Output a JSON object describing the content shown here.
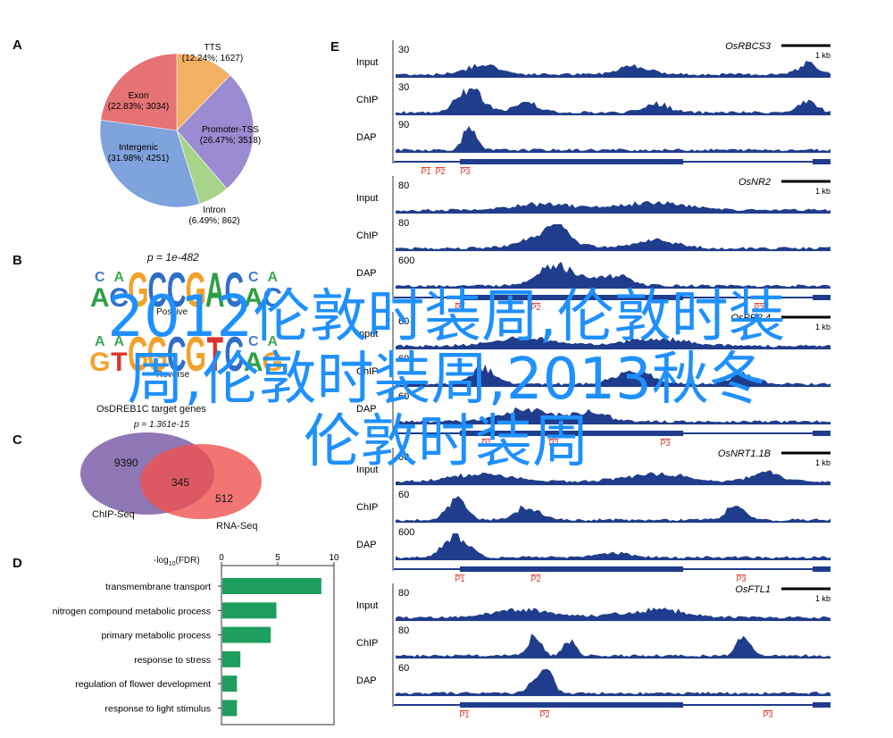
{
  "panels": {
    "A": {
      "letter": "A",
      "pie": [
        {
          "label": "TTS",
          "detail": "(12.24%; 1627)",
          "value": 12.24,
          "color": "#f2b063"
        },
        {
          "label": "Promoter-TSS",
          "detail": "(26.47%; 3518)",
          "value": 26.47,
          "color": "#9b8bd1"
        },
        {
          "label": "Intron",
          "detail": "(6.49%; 862)",
          "value": 6.49,
          "color": "#a6d48a"
        },
        {
          "label": "Intergenic",
          "detail": "(31.98%; 4251)",
          "value": 31.98,
          "color": "#7fa3dc"
        },
        {
          "label": "Exon",
          "detail": "(22.83%; 3034)",
          "value": 22.83,
          "color": "#e57373"
        }
      ]
    },
    "B": {
      "letter": "B",
      "pvalue": "p = 1e-482",
      "caption_top": "Positive",
      "caption_bottom": "Reverse",
      "title": "OsDREB1C target genes",
      "logo_top": "ACGCCGACAC",
      "logo_bottom": "GTGGCGTCAG"
    },
    "C": {
      "letter": "C",
      "pvalue": "p = 1.361e-15",
      "left_only": "9390",
      "overlap": "345",
      "right_only": "512",
      "left_label": "ChIP-Seq",
      "right_label": "RNA-Seq",
      "left_color": "#7b5ea7",
      "right_color": "#ef5350"
    },
    "D": {
      "letter": "D",
      "axis_label": "-log10(FDR)",
      "ticks": [
        "0",
        "5",
        "10"
      ],
      "bar_color": "#1e9e5c"
    },
    "E": {
      "letter": "E",
      "scale_label": "1 kb",
      "track_color": "#1f3d8c",
      "genes": [
        {
          "name": "OsRBCS3",
          "tracks": [
            {
              "label": "Input",
              "scale": "30"
            },
            {
              "label": "ChIP",
              "scale": "30"
            },
            {
              "label": "DAP",
              "scale": "90"
            }
          ],
          "primers": [
            "P1",
            "P2",
            "P3"
          ]
        },
        {
          "name": "OsNR2",
          "tracks": [
            {
              "label": "Input",
              "scale": "80"
            },
            {
              "label": "ChIP",
              "scale": "80"
            },
            {
              "label": "DAP",
              "scale": "600"
            }
          ],
          "primers": [
            "P1",
            "P2",
            "P3"
          ]
        },
        {
          "name": "OsPR2.4",
          "tracks": [
            {
              "label": "Input",
              "scale": "60"
            },
            {
              "label": "ChIP",
              "scale": "60"
            },
            {
              "label": "DAP",
              "scale": "60"
            }
          ],
          "primers": [
            "P1",
            "P2",
            "P3"
          ]
        },
        {
          "name": "OsNRT1.1B",
          "tracks": [
            {
              "label": "Input",
              "scale": "60"
            },
            {
              "label": "ChIP",
              "scale": "60"
            },
            {
              "label": "DAP",
              "scale": "600"
            }
          ],
          "primers": [
            "P1",
            "P2",
            "P3"
          ]
        },
        {
          "name": "OsFTL1",
          "tracks": [
            {
              "label": "Input",
              "scale": "80"
            },
            {
              "label": "ChIP",
              "scale": "80"
            },
            {
              "label": "DAP",
              "scale": "60"
            }
          ],
          "primers": [
            "P1",
            "P2",
            "P3"
          ]
        }
      ]
    }
  },
  "chart_data": {
    "type": "bar",
    "orientation": "horizontal",
    "xlabel": "-log10(FDR)",
    "xlim": [
      0,
      10
    ],
    "categories": [
      "transmembrane transport",
      "nitrogen compound metabolic process",
      "primary metabolic process",
      "response to stress",
      "regulation of flower development",
      "response to light stimulus"
    ],
    "values": [
      8.8,
      4.8,
      4.3,
      1.6,
      1.3,
      1.3
    ]
  },
  "overlay": {
    "line1": "2012伦敦时装周,伦敦时装",
    "line2": "周,伦敦时装周,2013秋冬",
    "line3": "伦敦时装周"
  }
}
